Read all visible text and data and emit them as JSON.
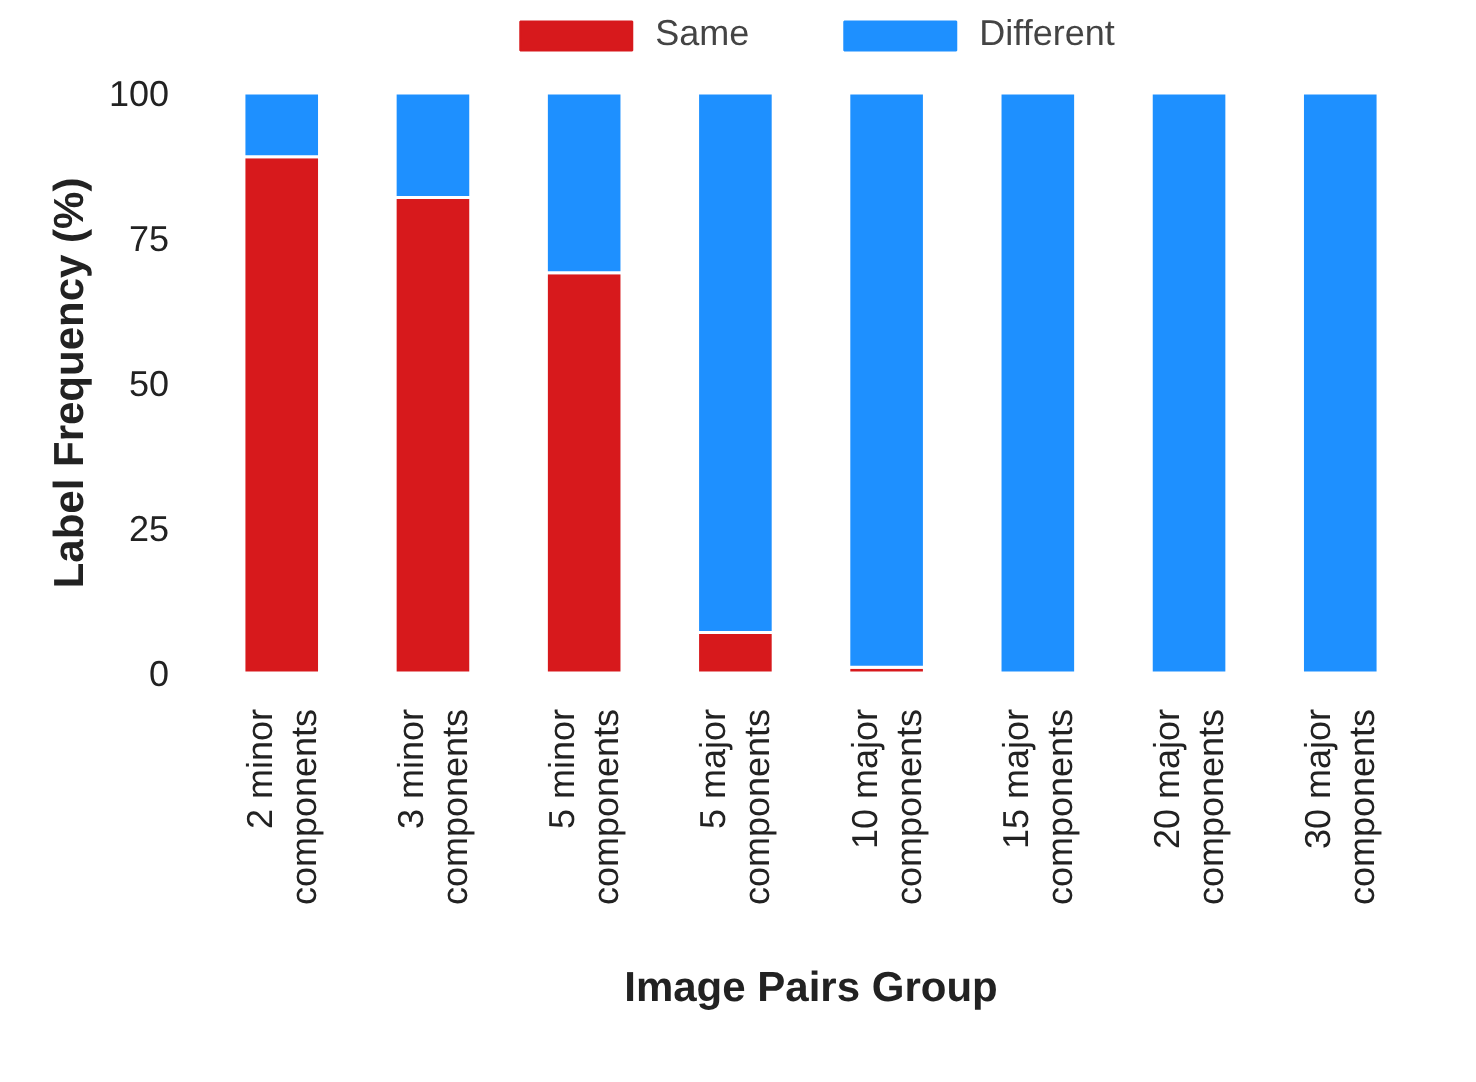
{
  "chart_data": {
    "type": "bar",
    "stacked": true,
    "xlabel": "Image Pairs Group",
    "ylabel": "Label Frequency (%)",
    "categories": [
      "2 minor\ncomponents",
      "3 minor\ncomponents",
      "5 minor\ncomponents",
      "5 major\ncomponents",
      "10 major\ncomponents",
      "15 major\ncomponents",
      "20 major\ncomponents",
      "30 major\ncomponents"
    ],
    "series": [
      {
        "name": "Same",
        "color": "#d7191c",
        "values": [
          89,
          82,
          69,
          7,
          1,
          0,
          0,
          0
        ]
      },
      {
        "name": "Different",
        "color": "#1e90ff",
        "values": [
          11,
          18,
          31,
          93,
          99,
          100,
          100,
          100
        ]
      }
    ],
    "ylim": [
      0,
      100
    ],
    "yticks": [
      0,
      25,
      50,
      75,
      100
    ],
    "grid": false,
    "legend": "top"
  }
}
